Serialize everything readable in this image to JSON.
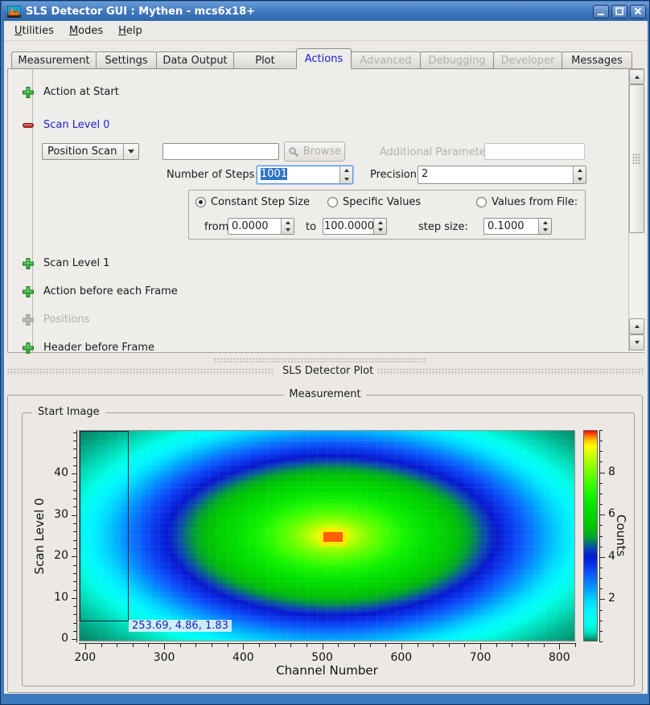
{
  "window": {
    "title": "SLS Detector GUI : Mythen - mcs6x18+"
  },
  "menubar": {
    "items": [
      {
        "label": "Utilities"
      },
      {
        "label": "Modes"
      },
      {
        "label": "Help"
      }
    ]
  },
  "tabs": [
    {
      "label": "Measurement",
      "state": "normal"
    },
    {
      "label": "Settings",
      "state": "normal"
    },
    {
      "label": "Data Output",
      "state": "normal"
    },
    {
      "label": "Plot",
      "state": "normal"
    },
    {
      "label": "Actions",
      "state": "active"
    },
    {
      "label": "Advanced",
      "state": "disabled"
    },
    {
      "label": "Debugging",
      "state": "disabled"
    },
    {
      "label": "Developer",
      "state": "disabled"
    },
    {
      "label": "Messages",
      "state": "normal"
    }
  ],
  "actions": {
    "action_at_start": {
      "label": "Action at Start"
    },
    "scan_level_0": {
      "label": "Scan Level 0"
    },
    "scan_level_1": {
      "label": "Scan Level 1"
    },
    "action_before_each_frame": {
      "label": "Action before each Frame"
    },
    "positions": {
      "label": "Positions",
      "disabled": true
    },
    "header_before_frame": {
      "label": "Header before Frame"
    },
    "scan0": {
      "mode": {
        "value": "Position Scan"
      },
      "script": {
        "value": ""
      },
      "browse": {
        "label": "Browse",
        "disabled": true
      },
      "additional_parameter": {
        "label": "Additional Parameter:",
        "value": "",
        "disabled": true
      },
      "number_of_steps": {
        "label": "Number of Steps:",
        "value": "1001",
        "selected": true
      },
      "precision": {
        "label": "Precision:",
        "value": "2"
      },
      "radios": [
        {
          "label": "Constant Step Size",
          "checked": true
        },
        {
          "label": "Specific Values",
          "checked": false
        },
        {
          "label": "Values from File:",
          "checked": false
        }
      ],
      "from": {
        "label": "from",
        "value": "0.0000"
      },
      "to": {
        "label": "to",
        "value": "100.0000"
      },
      "step_size": {
        "label": "step size:",
        "value": "0.1000"
      }
    }
  },
  "plot_dock": {
    "title": "SLS Detector Plot"
  },
  "measurement": {
    "title": "Measurement"
  },
  "chart_data": {
    "type": "heatmap",
    "title": "Start Image",
    "xlabel": "Channel Number",
    "ylabel": "Scan Level 0",
    "zlabel": "Counts",
    "xlim": [
      192,
      820
    ],
    "ylim": [
      -0.5,
      50.5
    ],
    "zlim": [
      0,
      10
    ],
    "x_ticks": [
      200,
      300,
      400,
      500,
      600,
      700,
      800
    ],
    "x_minor_step": 20,
    "y_ticks": [
      0,
      10,
      20,
      30,
      40
    ],
    "y_minor_step": 2,
    "z_ticks": [
      2,
      4,
      6,
      8
    ],
    "z_minor_step": 0.5,
    "grid": false,
    "legend_position": "colorbar-right",
    "colormap_low_to_high": [
      "#00795d",
      "#00e2c0",
      "#00ffe9",
      "#00f6ff",
      "#00d9ff",
      "#00a4ff",
      "#0a6bff",
      "#0a3cf0",
      "#0618cf",
      "#0c46b4",
      "#00a035",
      "#00bd0a",
      "#00cf00",
      "#00e000",
      "#12f200",
      "#3cff00",
      "#6fff00",
      "#a5ff00",
      "#d3ff00",
      "#fdff00",
      "#ffd400",
      "#ff7b00",
      "#ff0000"
    ],
    "description": "Elliptical Gaussian-like intensity map: peak ~10 counts at channel ~511, scan level ~25, falling to ~0 (dark teal) at the corners",
    "peak": {
      "channel": 511,
      "scan_level": 25,
      "counts": 10
    },
    "background_counts": 0,
    "cursor_readout": "253.69, 4.86, 1.83",
    "selection_rect": {
      "channel_from": 192,
      "channel_to": 255,
      "scan_from": 4.86,
      "scan_to": 50.5
    }
  },
  "colors": {
    "titlebar": "#3f77bd",
    "window_border": "#3d79bd",
    "accent_focus": "#5a96d6",
    "selection_bg": "#3174c8",
    "active_tab_text": "#1616cc",
    "scan_level0_text": "#2222cc",
    "plus_icon_green": "#3cb43c",
    "minus_icon_red": "#c03030",
    "disabled_text": "#b3b1ae"
  }
}
